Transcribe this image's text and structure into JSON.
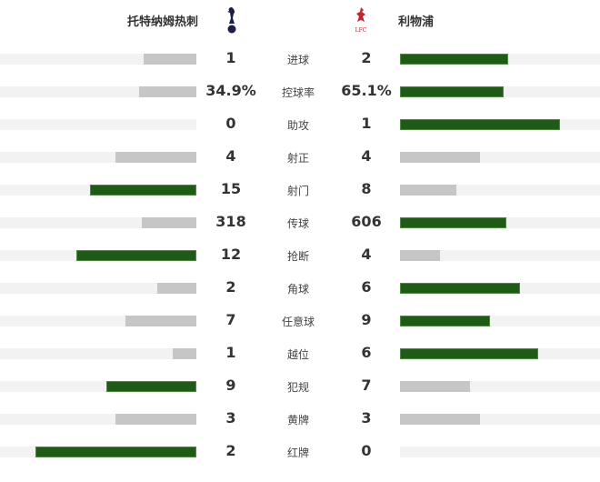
{
  "home": {
    "name": "托特纳姆热刺",
    "logo": "tottenham-crest"
  },
  "away": {
    "name": "利物浦",
    "logo": "liverpool-crest",
    "logo_text": "LFC"
  },
  "colors": {
    "leader": "#1f5a17",
    "other": "#c6c6c6",
    "track": "#f2f2f2"
  },
  "stats": [
    {
      "label": "进球",
      "home": "1",
      "away": "2",
      "home_fill": 0.27,
      "away_fill": 0.54,
      "leader": "away"
    },
    {
      "label": "控球率",
      "home": "34.9%",
      "away": "65.1%",
      "home_fill": 0.29,
      "away_fill": 0.52,
      "leader": "away"
    },
    {
      "label": "助攻",
      "home": "0",
      "away": "1",
      "home_fill": 0,
      "away_fill": 0.8,
      "leader": "away"
    },
    {
      "label": "射正",
      "home": "4",
      "away": "4",
      "home_fill": 0.41,
      "away_fill": 0.4,
      "leader": "none"
    },
    {
      "label": "射门",
      "home": "15",
      "away": "8",
      "home_fill": 0.54,
      "away_fill": 0.28,
      "leader": "home"
    },
    {
      "label": "传球",
      "home": "318",
      "away": "606",
      "home_fill": 0.28,
      "away_fill": 0.53,
      "leader": "away"
    },
    {
      "label": "抢断",
      "home": "12",
      "away": "4",
      "home_fill": 0.61,
      "away_fill": 0.2,
      "leader": "home"
    },
    {
      "label": "角球",
      "home": "2",
      "away": "6",
      "home_fill": 0.2,
      "away_fill": 0.6,
      "leader": "away"
    },
    {
      "label": "任意球",
      "home": "7",
      "away": "9",
      "home_fill": 0.36,
      "away_fill": 0.45,
      "leader": "away"
    },
    {
      "label": "越位",
      "home": "1",
      "away": "6",
      "home_fill": 0.12,
      "away_fill": 0.69,
      "leader": "away"
    },
    {
      "label": "犯规",
      "home": "9",
      "away": "7",
      "home_fill": 0.46,
      "away_fill": 0.35,
      "leader": "home"
    },
    {
      "label": "黄牌",
      "home": "3",
      "away": "3",
      "home_fill": 0.41,
      "away_fill": 0.4,
      "leader": "none"
    },
    {
      "label": "红牌",
      "home": "2",
      "away": "0",
      "home_fill": 0.82,
      "away_fill": 0,
      "leader": "home"
    }
  ]
}
